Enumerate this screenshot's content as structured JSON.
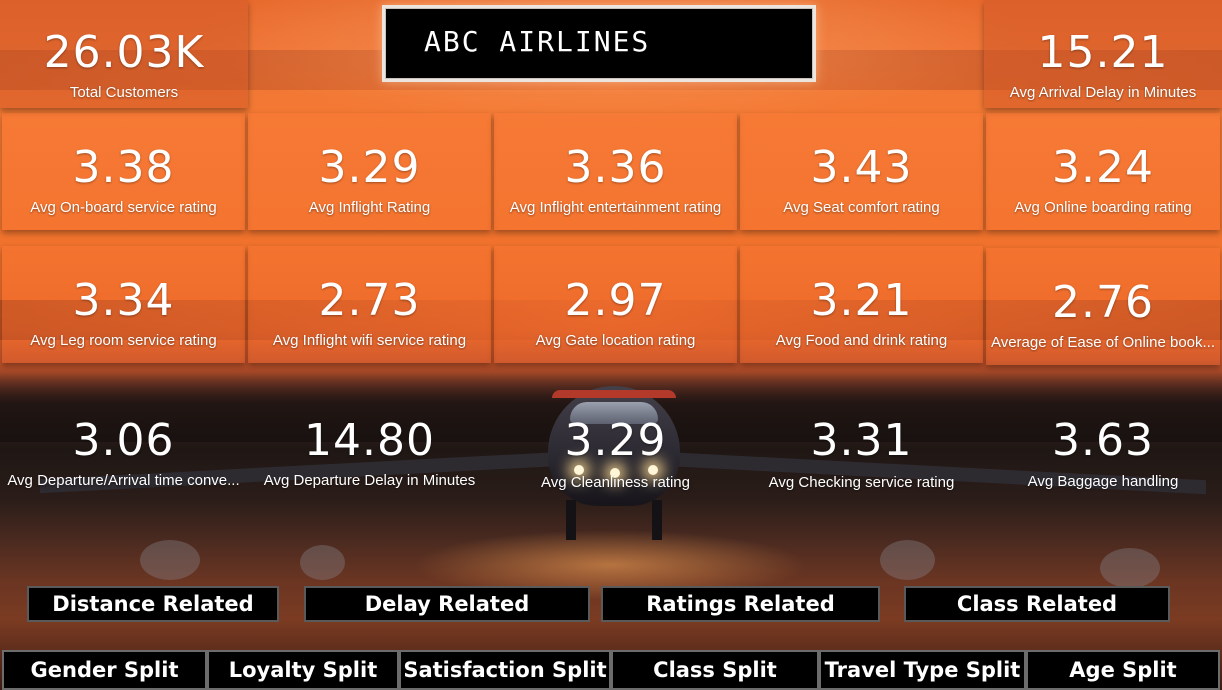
{
  "title": "ABC AIRLINES",
  "top_kpis": {
    "total_customers": {
      "value": "26.03K",
      "label": "Total Customers"
    },
    "avg_arrival_delay": {
      "value": "15.21",
      "label": "Avg Arrival Delay in Minutes"
    }
  },
  "rating_rows": [
    [
      {
        "value": "3.38",
        "label": "Avg On-board service rating"
      },
      {
        "value": "3.29",
        "label": "Avg Inflight Rating"
      },
      {
        "value": "3.36",
        "label": "Avg Inflight entertainment rating"
      },
      {
        "value": "3.43",
        "label": "Avg Seat comfort rating"
      },
      {
        "value": "3.24",
        "label": "Avg Online boarding rating"
      }
    ],
    [
      {
        "value": "3.34",
        "label": "Avg Leg room service rating"
      },
      {
        "value": "2.73",
        "label": "Avg Inflight wifi service rating"
      },
      {
        "value": "2.97",
        "label": "Avg Gate location rating"
      },
      {
        "value": "3.21",
        "label": "Avg Food and drink rating"
      },
      {
        "value": "2.76",
        "label": "Average of Ease of Online book..."
      }
    ],
    [
      {
        "value": "3.06",
        "label": "Avg Departure/Arrival time conve..."
      },
      {
        "value": "14.80",
        "label": "Avg Departure Delay in Minutes"
      },
      {
        "value": "3.29",
        "label": "Avg Cleanliness rating"
      },
      {
        "value": "3.31",
        "label": "Avg Checking service rating"
      },
      {
        "value": "3.63",
        "label": "Avg Baggage handling"
      }
    ]
  ],
  "nav_buttons": [
    "Distance Related",
    "Delay Related",
    "Ratings Related",
    "Class Related"
  ],
  "split_buttons": [
    "Gender Split",
    "Loyalty Split",
    "Satisfaction Split",
    "Class Split",
    "Travel Type Split",
    "Age Split"
  ]
}
